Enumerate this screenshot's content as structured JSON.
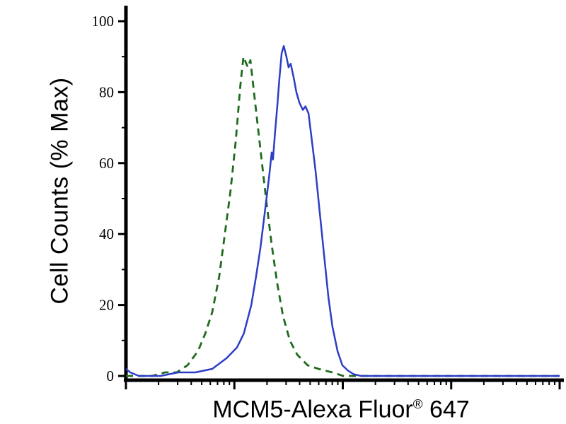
{
  "chart_data": {
    "type": "line",
    "title": "",
    "xlabel": "MCM5-Alexa Fluor® 647",
    "ylabel": "Cell Counts (% Max)",
    "x_scale": "log",
    "x_decades": 4,
    "x_tick_labels": [],
    "ylim": [
      0,
      100
    ],
    "yticks": [
      0,
      20,
      40,
      60,
      80,
      100
    ],
    "y_minor_ticks": [
      10,
      30,
      50,
      70,
      90
    ],
    "grid": false,
    "legend_position": "none",
    "axis_color": "#000000",
    "series": [
      {
        "id": "green-dashed-control",
        "style": "dashed",
        "color": "#1e6b1e",
        "width": 2.8,
        "points": [
          [
            0.0,
            0
          ],
          [
            0.06,
            0
          ],
          [
            0.09,
            1
          ],
          [
            0.117,
            1
          ],
          [
            0.142,
            3
          ],
          [
            0.166,
            7
          ],
          [
            0.183,
            12
          ],
          [
            0.199,
            18
          ],
          [
            0.215,
            28
          ],
          [
            0.228,
            40
          ],
          [
            0.241,
            52
          ],
          [
            0.253,
            66
          ],
          [
            0.264,
            82
          ],
          [
            0.271,
            90
          ],
          [
            0.281,
            87
          ],
          [
            0.287,
            89
          ],
          [
            0.297,
            78
          ],
          [
            0.31,
            64
          ],
          [
            0.323,
            50
          ],
          [
            0.336,
            37
          ],
          [
            0.349,
            26
          ],
          [
            0.362,
            17
          ],
          [
            0.378,
            10
          ],
          [
            0.395,
            6
          ],
          [
            0.419,
            3
          ],
          [
            0.444,
            2
          ],
          [
            0.476,
            1
          ],
          [
            0.501,
            0
          ],
          [
            0.55,
            0
          ],
          [
            0.75,
            0
          ],
          [
            1.0,
            0
          ]
        ]
      },
      {
        "id": "blue-solid-mcm5",
        "style": "solid",
        "color": "#2d3dc6",
        "width": 2.5,
        "points": [
          [
            0.0,
            2
          ],
          [
            0.01,
            1
          ],
          [
            0.03,
            0
          ],
          [
            0.08,
            0
          ],
          [
            0.12,
            1
          ],
          [
            0.16,
            1
          ],
          [
            0.199,
            2
          ],
          [
            0.232,
            5
          ],
          [
            0.256,
            8
          ],
          [
            0.272,
            12
          ],
          [
            0.289,
            20
          ],
          [
            0.3,
            28
          ],
          [
            0.31,
            36
          ],
          [
            0.32,
            46
          ],
          [
            0.33,
            56
          ],
          [
            0.336,
            63
          ],
          [
            0.339,
            61
          ],
          [
            0.344,
            69
          ],
          [
            0.349,
            76
          ],
          [
            0.354,
            84
          ],
          [
            0.359,
            91
          ],
          [
            0.364,
            93
          ],
          [
            0.37,
            90
          ],
          [
            0.375,
            87
          ],
          [
            0.38,
            88
          ],
          [
            0.387,
            84
          ],
          [
            0.393,
            80
          ],
          [
            0.4,
            77
          ],
          [
            0.408,
            75
          ],
          [
            0.414,
            76
          ],
          [
            0.421,
            74
          ],
          [
            0.427,
            68
          ],
          [
            0.437,
            58
          ],
          [
            0.447,
            46
          ],
          [
            0.457,
            34
          ],
          [
            0.467,
            22
          ],
          [
            0.476,
            14
          ],
          [
            0.488,
            7
          ],
          [
            0.499,
            3
          ],
          [
            0.512,
            1.5
          ],
          [
            0.525,
            0.5
          ],
          [
            0.542,
            0
          ],
          [
            0.6,
            0
          ],
          [
            0.8,
            0
          ],
          [
            1.0,
            0
          ]
        ]
      }
    ]
  },
  "labels": {
    "ylabel": "Cell Counts (% Max)",
    "xlabel_main": "MCM5-Alexa Fluor",
    "xlabel_reg": "®",
    "xlabel_tail": " 647"
  }
}
